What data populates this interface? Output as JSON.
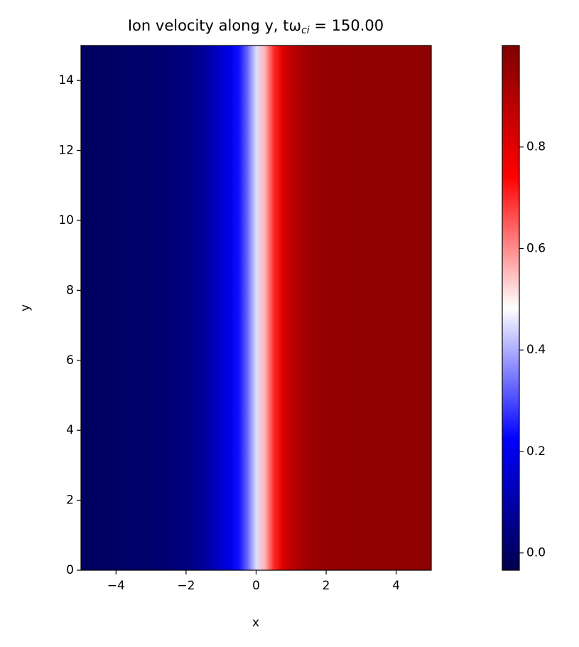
{
  "chart_data": {
    "type": "heatmap",
    "title": "Ion velocity along y, tω",
    "title_subscript": "ci",
    "title_suffix": " = 150.00",
    "xlabel": "x",
    "ylabel": "y",
    "colormap": "seismic",
    "x": [
      -5,
      -4,
      -3,
      -2,
      -1.5,
      -1,
      -0.75,
      -0.5,
      -0.25,
      0,
      0.25,
      0.5,
      0.75,
      1,
      1.5,
      2,
      3,
      4,
      5
    ],
    "values": [
      -0.01,
      0.0,
      0.01,
      0.04,
      0.08,
      0.15,
      0.19,
      0.24,
      0.33,
      0.45,
      0.56,
      0.7,
      0.8,
      0.88,
      0.94,
      0.96,
      0.97,
      0.97,
      0.97
    ],
    "xlim": [
      -5,
      5
    ],
    "ylim": [
      0,
      15
    ],
    "xticks": [
      {
        "value": -4,
        "label": "−4"
      },
      {
        "value": -2,
        "label": "−2"
      },
      0,
      2,
      4
    ],
    "yticks": [
      0,
      2,
      4,
      6,
      8,
      10,
      12,
      14
    ],
    "clim": [
      -0.034,
      1.0
    ],
    "cticks": [
      {
        "value": 0,
        "label": "0.0"
      },
      0.2,
      0.4,
      0.6,
      0.8
    ]
  }
}
